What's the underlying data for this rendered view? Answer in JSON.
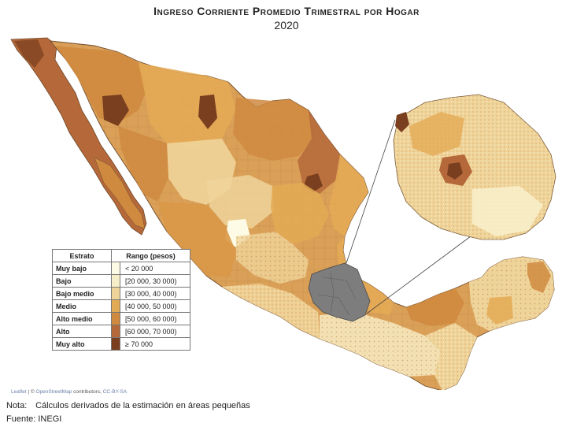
{
  "title": "Ingreso Corriente Promedio Trimestral por Hogar",
  "year": "2020",
  "legend": {
    "header_estrato": "Estrato",
    "header_rango": "Rango (pesos)",
    "rows": [
      {
        "name": "Muy bajo",
        "range": "< 20 000",
        "color": "#fdfbe6"
      },
      {
        "name": "Bajo",
        "range": "[20 000, 30 000)",
        "color": "#f7eec9"
      },
      {
        "name": "Bajo medio",
        "range": "[30 000, 40 000)",
        "color": "#efd49a"
      },
      {
        "name": "Medio",
        "range": "[40 000, 50 000)",
        "color": "#e3aa55"
      },
      {
        "name": "Alto medio",
        "range": "[50 000, 60 000)",
        "color": "#cf8a3f"
      },
      {
        "name": "Alto",
        "range": "[60 000, 70 000)",
        "color": "#b5693a"
      },
      {
        "name": "Muy alto",
        "range": "≥ 70 000",
        "color": "#7a3f1f"
      }
    ]
  },
  "highlight_color": "#7d7d7d",
  "attribution": {
    "leaflet": "Leaflet",
    "osm": "OpenStreetMap",
    "contributors": "contributors,",
    "license": "CC-BY-SA"
  },
  "note_label": "Nota:",
  "note_text": "Cálculos derivados de la estimación en áreas pequeñas",
  "source": "Fuente: INEGI"
}
